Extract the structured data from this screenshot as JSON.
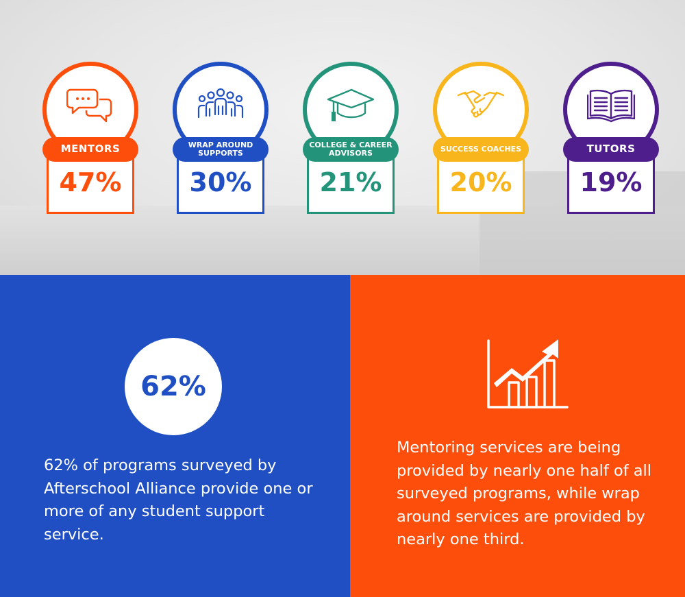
{
  "stats": [
    {
      "label": "MENTORS",
      "value": "47%",
      "color": "#fd4e0c",
      "icon": "chat-bubbles-icon"
    },
    {
      "label": "WRAP AROUND SUPPORTS",
      "value": "30%",
      "color": "#1f4fc2",
      "icon": "group-people-icon"
    },
    {
      "label": "COLLEGE & CAREER ADVISORS",
      "value": "21%",
      "color": "#23947a",
      "icon": "graduation-cap-icon"
    },
    {
      "label": "SUCCESS COACHES",
      "value": "20%",
      "color": "#f8b51c",
      "icon": "handshake-icon"
    },
    {
      "label": "TUTORS",
      "value": "19%",
      "color": "#4d1e8c",
      "icon": "open-book-icon"
    }
  ],
  "left_panel": {
    "big_stat": "62%",
    "text": "62% of programs surveyed by Afterschool Alliance provide one or more of any student support service.",
    "color": "#1f4fc2"
  },
  "right_panel": {
    "icon": "growth-chart-icon",
    "text": "Mentoring services are being provided by nearly one half of all surveyed programs, while wrap around services are provided by nearly one third.",
    "color": "#fd4e0c"
  }
}
